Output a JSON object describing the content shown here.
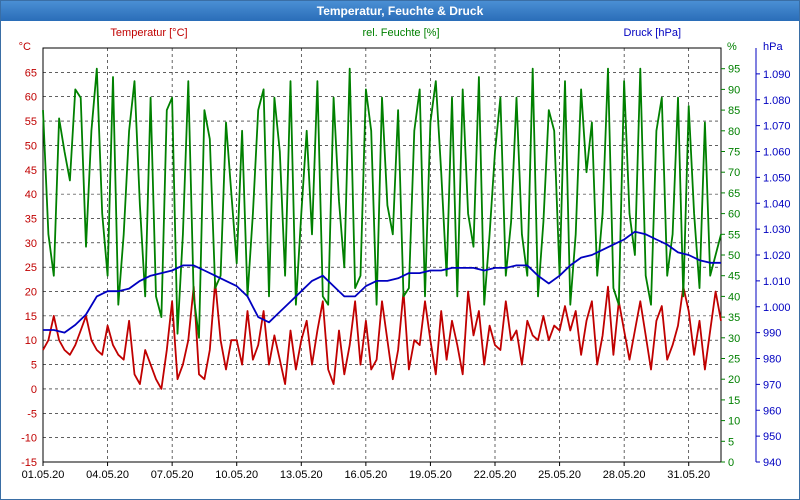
{
  "window": {
    "title": "Temperatur, Feuchte & Druck"
  },
  "chart_data": {
    "type": "line",
    "title": "Temperatur, Feuchte & Druck",
    "x_ticks": [
      "01.05.20",
      "04.05.20",
      "07.05.20",
      "10.05.20",
      "13.05.20",
      "16.05.20",
      "19.05.20",
      "22.05.20",
      "25.05.20",
      "28.05.20",
      "31.05.20"
    ],
    "xlim": [
      "01.05.20",
      "01.06.20 12:00"
    ],
    "grid": true,
    "axes": {
      "temperature": {
        "label": "Temperatur [°C]",
        "unit": "°C",
        "range": [
          -15,
          70
        ],
        "ticks": [
          -15,
          -10,
          -5,
          0,
          5,
          10,
          15,
          20,
          25,
          30,
          35,
          40,
          45,
          50,
          55,
          60,
          65
        ],
        "color": "#c00000"
      },
      "humidity": {
        "label": "rel. Feuchte [%]",
        "unit": "%",
        "range": [
          0,
          100
        ],
        "ticks": [
          0,
          5,
          10,
          15,
          20,
          25,
          30,
          35,
          40,
          45,
          50,
          55,
          60,
          65,
          70,
          75,
          80,
          85,
          90,
          95
        ],
        "color": "#008000"
      },
      "pressure": {
        "label": "Druck [hPa]",
        "unit": "hPa",
        "range": [
          940,
          1100
        ],
        "ticks": [
          "940",
          "950",
          "960",
          "970",
          "980",
          "990",
          "1.000",
          "1.010",
          "1.020",
          "1.030",
          "1.040",
          "1.050",
          "1.060",
          "1.070",
          "1.080",
          "1.090"
        ],
        "color": "#0000c0"
      }
    },
    "series": [
      {
        "name": "Temperatur [°C]",
        "axis": "temperature",
        "color": "#c00000",
        "x_days": [
          0,
          0.25,
          0.5,
          0.75,
          1,
          1.25,
          1.5,
          1.75,
          2,
          2.25,
          2.5,
          2.75,
          3,
          3.25,
          3.5,
          3.75,
          4,
          4.25,
          4.5,
          4.75,
          5,
          5.25,
          5.5,
          5.75,
          6,
          6.25,
          6.5,
          6.75,
          7,
          7.25,
          7.5,
          7.75,
          8,
          8.25,
          8.5,
          8.75,
          9,
          9.25,
          9.5,
          9.75,
          10,
          10.25,
          10.5,
          10.75,
          11,
          11.25,
          11.5,
          11.75,
          12,
          12.25,
          12.5,
          12.75,
          13,
          13.25,
          13.5,
          13.75,
          14,
          14.25,
          14.5,
          14.75,
          15,
          15.25,
          15.5,
          15.75,
          16,
          16.25,
          16.5,
          16.75,
          17,
          17.25,
          17.5,
          17.75,
          18,
          18.25,
          18.5,
          18.75,
          19,
          19.25,
          19.5,
          19.75,
          20,
          20.25,
          20.5,
          20.75,
          21,
          21.25,
          21.5,
          21.75,
          22,
          22.25,
          22.5,
          22.75,
          23,
          23.25,
          23.5,
          23.75,
          24,
          24.25,
          24.5,
          24.75,
          25,
          25.25,
          25.5,
          25.75,
          26,
          26.25,
          26.5,
          26.75,
          27,
          27.25,
          27.5,
          27.75,
          28,
          28.25,
          28.5,
          28.75,
          29,
          29.25,
          29.5,
          29.75,
          30,
          30.25,
          30.5,
          30.75,
          31,
          31.25,
          31.5
        ],
        "values": [
          8,
          10,
          15,
          10,
          8,
          7,
          9,
          12,
          15,
          10,
          8,
          7,
          13,
          9,
          7,
          6,
          14,
          3,
          1,
          8,
          5,
          2,
          0,
          8,
          18,
          2,
          5,
          10,
          21,
          3,
          2,
          8,
          22,
          10,
          4,
          10,
          10,
          5,
          16,
          6,
          9,
          16,
          5,
          11,
          6,
          1,
          12,
          4,
          10,
          14,
          5,
          12,
          18,
          4,
          1,
          12,
          3,
          9,
          18,
          5,
          14,
          4,
          6,
          18,
          10,
          2,
          8,
          20,
          4,
          10,
          9,
          18,
          10,
          3,
          16,
          6,
          14,
          9,
          3,
          20,
          11,
          16,
          5,
          13,
          9,
          8,
          18,
          10,
          12,
          5,
          14,
          11,
          10,
          15,
          10,
          13,
          12,
          17,
          12,
          16,
          7,
          14,
          18,
          5,
          11,
          21,
          7,
          18,
          12,
          6,
          12,
          18,
          11,
          4,
          14,
          17,
          6,
          9,
          13,
          21,
          16,
          7,
          14,
          4,
          12,
          20,
          14
        ]
      },
      {
        "name": "rel. Feuchte [%]",
        "axis": "humidity",
        "color": "#008000",
        "x_days": [
          0,
          0.25,
          0.5,
          0.75,
          1,
          1.25,
          1.5,
          1.75,
          2,
          2.25,
          2.5,
          2.75,
          3,
          3.25,
          3.5,
          3.75,
          4,
          4.25,
          4.5,
          4.75,
          5,
          5.25,
          5.5,
          5.75,
          6,
          6.25,
          6.5,
          6.75,
          7,
          7.25,
          7.5,
          7.75,
          8,
          8.25,
          8.5,
          8.75,
          9,
          9.25,
          9.5,
          9.75,
          10,
          10.25,
          10.5,
          10.75,
          11,
          11.25,
          11.5,
          11.75,
          12,
          12.25,
          12.5,
          12.75,
          13,
          13.25,
          13.5,
          13.75,
          14,
          14.25,
          14.5,
          14.75,
          15,
          15.25,
          15.5,
          15.75,
          16,
          16.25,
          16.5,
          16.75,
          17,
          17.25,
          17.5,
          17.75,
          18,
          18.25,
          18.5,
          18.75,
          19,
          19.25,
          19.5,
          19.75,
          20,
          20.25,
          20.5,
          20.75,
          21,
          21.25,
          21.5,
          21.75,
          22,
          22.25,
          22.5,
          22.75,
          23,
          23.25,
          23.5,
          23.75,
          24,
          24.25,
          24.5,
          24.75,
          25,
          25.25,
          25.5,
          25.75,
          26,
          26.25,
          26.5,
          26.75,
          27,
          27.25,
          27.5,
          27.75,
          28,
          28.25,
          28.5,
          28.75,
          29,
          29.25,
          29.5,
          29.75,
          30,
          30.25,
          30.5,
          30.75,
          31,
          31.25,
          31.5
        ],
        "values": [
          85,
          55,
          45,
          83,
          75,
          68,
          90,
          88,
          52,
          80,
          95,
          60,
          45,
          93,
          38,
          55,
          80,
          92,
          62,
          40,
          88,
          40,
          35,
          85,
          88,
          31,
          55,
          92,
          40,
          30,
          85,
          78,
          42,
          45,
          82,
          65,
          48,
          80,
          40,
          60,
          85,
          90,
          40,
          88,
          75,
          45,
          92,
          38,
          60,
          80,
          55,
          92,
          40,
          38,
          88,
          63,
          47,
          95,
          42,
          45,
          90,
          80,
          38,
          88,
          62,
          55,
          85,
          40,
          42,
          80,
          90,
          40,
          82,
          92,
          70,
          45,
          88,
          40,
          90,
          60,
          52,
          93,
          38,
          55,
          75,
          88,
          45,
          58,
          88,
          55,
          45,
          95,
          40,
          58,
          85,
          80,
          45,
          92,
          38,
          55,
          90,
          70,
          82,
          45,
          60,
          95,
          42,
          38,
          92,
          60,
          50,
          95,
          45,
          38,
          80,
          88,
          45,
          55,
          88,
          40,
          86,
          60,
          42,
          82,
          45,
          50,
          55
        ]
      },
      {
        "name": "Druck [hPa]",
        "axis": "pressure",
        "color": "#0000c0",
        "x_days": [
          0,
          0.5,
          1,
          1.5,
          2,
          2.5,
          3,
          3.5,
          4,
          4.5,
          5,
          5.5,
          6,
          6.5,
          7,
          7.5,
          8,
          8.5,
          9,
          9.5,
          10,
          10.5,
          11,
          11.5,
          12,
          12.5,
          13,
          13.5,
          14,
          14.5,
          15,
          15.5,
          16,
          16.5,
          17,
          17.5,
          18,
          18.5,
          19,
          19.5,
          20,
          20.5,
          21,
          21.5,
          22,
          22.5,
          23,
          23.5,
          24,
          24.5,
          25,
          25.5,
          26,
          26.5,
          27,
          27.5,
          28,
          28.5,
          29,
          29.5,
          30,
          30.5,
          31,
          31.5
        ],
        "values": [
          991,
          991,
          990,
          993,
          997,
          1004,
          1006,
          1006,
          1007,
          1010,
          1012,
          1013,
          1014,
          1016,
          1016,
          1014,
          1012,
          1010,
          1008,
          1004,
          996,
          994,
          998,
          1002,
          1006,
          1010,
          1012,
          1008,
          1004,
          1004,
          1008,
          1010,
          1010,
          1011,
          1013,
          1013,
          1014,
          1014,
          1015,
          1015,
          1015,
          1014,
          1015,
          1015,
          1016,
          1016,
          1012,
          1009,
          1012,
          1016,
          1019,
          1020,
          1022,
          1024,
          1026,
          1029,
          1028,
          1026,
          1024,
          1021,
          1020,
          1018,
          1017,
          1017
        ]
      }
    ]
  }
}
